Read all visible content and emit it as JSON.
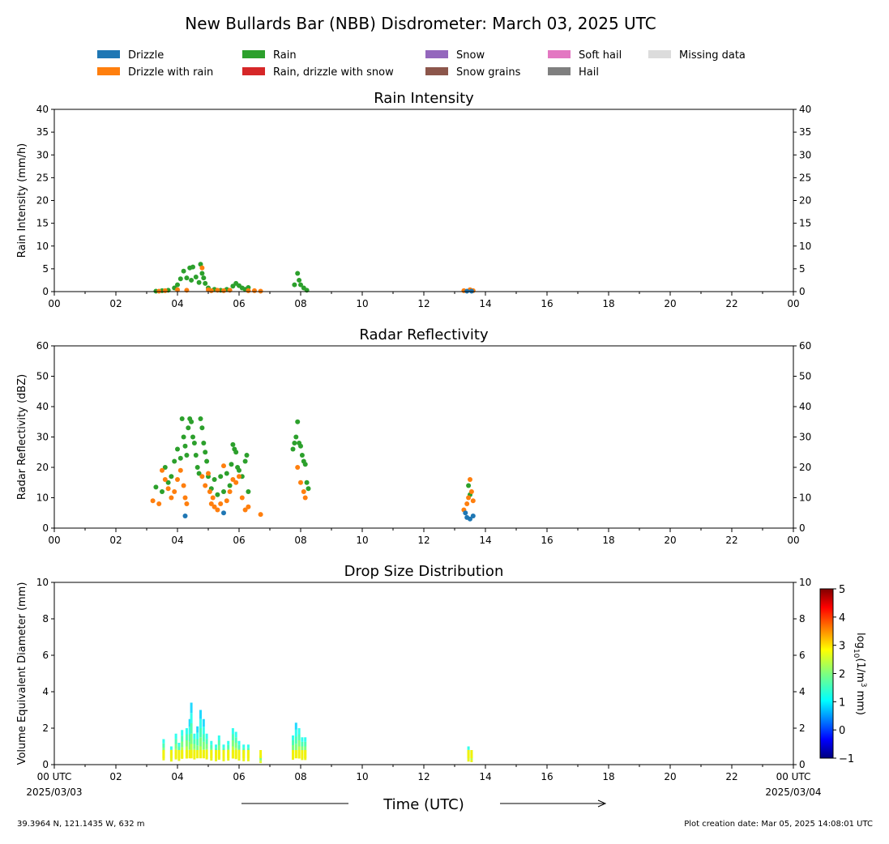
{
  "title": "New Bullards Bar (NBB) Disdrometer: March 03, 2025 UTC",
  "legend": [
    {
      "label": "Drizzle",
      "color": "#1f77b4"
    },
    {
      "label": "Drizzle with rain",
      "color": "#ff7f0e"
    },
    {
      "label": "Rain",
      "color": "#2ca02c"
    },
    {
      "label": "Rain, drizzle with snow",
      "color": "#d62728"
    },
    {
      "label": "Snow",
      "color": "#9467bd"
    },
    {
      "label": "Snow grains",
      "color": "#8c564b"
    },
    {
      "label": "Soft hail",
      "color": "#e377c2"
    },
    {
      "label": "Hail",
      "color": "#7f7f7f"
    },
    {
      "label": "Missing data",
      "color": "#dcdcdc"
    }
  ],
  "x_ticks": [
    "00",
    "02",
    "04",
    "06",
    "08",
    "10",
    "12",
    "14",
    "16",
    "18",
    "20",
    "22",
    "00"
  ],
  "x_first_tick": {
    "line1": "00 UTC",
    "line2": "2025/03/03"
  },
  "x_last_tick": {
    "line1": "00 UTC",
    "line2": "2025/03/04"
  },
  "xlabel": "Time (UTC)",
  "footer_left": "39.3964 N, 121.1435 W, 632 m",
  "footer_right": "Plot creation date: Mar 05, 2025 14:08:01 UTC",
  "chart_data": [
    {
      "type": "scatter",
      "title": "Rain Intensity",
      "ylabel": "Rain Intensity (mm/h)",
      "xlim": [
        0,
        24
      ],
      "ylim": [
        0,
        40
      ],
      "yticks": [
        0,
        5,
        10,
        15,
        20,
        25,
        30,
        35,
        40
      ],
      "series": [
        {
          "name": "Rain",
          "color": "#2ca02c",
          "points": [
            [
              3.3,
              0.1
            ],
            [
              3.5,
              0.2
            ],
            [
              3.7,
              0.3
            ],
            [
              3.9,
              0.8
            ],
            [
              4.0,
              1.5
            ],
            [
              4.1,
              2.8
            ],
            [
              4.2,
              4.5
            ],
            [
              4.3,
              3.0
            ],
            [
              4.4,
              5.2
            ],
            [
              4.45,
              2.5
            ],
            [
              4.5,
              5.4
            ],
            [
              4.6,
              3.2
            ],
            [
              4.7,
              2.0
            ],
            [
              4.75,
              6.0
            ],
            [
              4.8,
              4.0
            ],
            [
              4.85,
              3.0
            ],
            [
              4.9,
              1.8
            ],
            [
              5.0,
              0.8
            ],
            [
              5.2,
              0.5
            ],
            [
              5.4,
              0.3
            ],
            [
              5.6,
              0.5
            ],
            [
              5.8,
              1.2
            ],
            [
              5.9,
              1.8
            ],
            [
              6.0,
              1.3
            ],
            [
              6.1,
              0.8
            ],
            [
              6.2,
              0.5
            ],
            [
              6.3,
              0.9
            ],
            [
              7.8,
              1.5
            ],
            [
              7.9,
              4.0
            ],
            [
              7.95,
              2.5
            ],
            [
              8.0,
              1.5
            ],
            [
              8.1,
              0.8
            ],
            [
              8.2,
              0.3
            ]
          ]
        },
        {
          "name": "Drizzle with rain",
          "color": "#ff7f0e",
          "points": [
            [
              3.4,
              0.1
            ],
            [
              3.6,
              0.2
            ],
            [
              4.0,
              0.4
            ],
            [
              4.3,
              0.3
            ],
            [
              4.8,
              5.2
            ],
            [
              5.0,
              0.4
            ],
            [
              5.1,
              0.2
            ],
            [
              5.3,
              0.3
            ],
            [
              5.5,
              0.2
            ],
            [
              5.7,
              0.3
            ],
            [
              6.3,
              0.2
            ],
            [
              6.5,
              0.2
            ],
            [
              6.7,
              0.1
            ],
            [
              13.3,
              0.2
            ],
            [
              13.5,
              0.4
            ],
            [
              13.6,
              0.2
            ]
          ]
        },
        {
          "name": "Drizzle",
          "color": "#1f77b4",
          "points": [
            [
              13.4,
              0.1
            ],
            [
              13.55,
              0.1
            ]
          ]
        }
      ]
    },
    {
      "type": "scatter",
      "title": "Radar Reflectivity",
      "ylabel": "Radar Reflectivity (dBZ)",
      "xlim": [
        0,
        24
      ],
      "ylim": [
        0,
        60
      ],
      "yticks": [
        0,
        10,
        20,
        30,
        40,
        50,
        60
      ],
      "series": [
        {
          "name": "Rain",
          "color": "#2ca02c",
          "points": [
            [
              3.3,
              13.5
            ],
            [
              3.5,
              12
            ],
            [
              3.6,
              20
            ],
            [
              3.7,
              15
            ],
            [
              3.8,
              17
            ],
            [
              3.9,
              22
            ],
            [
              4.0,
              26
            ],
            [
              4.1,
              23
            ],
            [
              4.15,
              36
            ],
            [
              4.2,
              30
            ],
            [
              4.25,
              27
            ],
            [
              4.3,
              24
            ],
            [
              4.35,
              33
            ],
            [
              4.4,
              36
            ],
            [
              4.45,
              35
            ],
            [
              4.5,
              30
            ],
            [
              4.55,
              28
            ],
            [
              4.6,
              24
            ],
            [
              4.65,
              20
            ],
            [
              4.7,
              18
            ],
            [
              4.75,
              36
            ],
            [
              4.8,
              33
            ],
            [
              4.85,
              28
            ],
            [
              4.9,
              25
            ],
            [
              4.95,
              22
            ],
            [
              5.0,
              17
            ],
            [
              5.1,
              13
            ],
            [
              5.2,
              16
            ],
            [
              5.3,
              11
            ],
            [
              5.4,
              17
            ],
            [
              5.5,
              12
            ],
            [
              5.6,
              18
            ],
            [
              5.7,
              14
            ],
            [
              5.75,
              21
            ],
            [
              5.8,
              27.5
            ],
            [
              5.85,
              26
            ],
            [
              5.9,
              25
            ],
            [
              5.95,
              20
            ],
            [
              6.0,
              19
            ],
            [
              6.1,
              17
            ],
            [
              6.2,
              22
            ],
            [
              6.25,
              24
            ],
            [
              6.3,
              12
            ],
            [
              7.75,
              26
            ],
            [
              7.8,
              28
            ],
            [
              7.85,
              30
            ],
            [
              7.9,
              35
            ],
            [
              7.95,
              28
            ],
            [
              8.0,
              27
            ],
            [
              8.05,
              24
            ],
            [
              8.1,
              22
            ],
            [
              8.15,
              21
            ],
            [
              8.2,
              15
            ],
            [
              8.25,
              13
            ],
            [
              13.45,
              14
            ],
            [
              13.5,
              11
            ]
          ]
        },
        {
          "name": "Drizzle with rain",
          "color": "#ff7f0e",
          "points": [
            [
              3.2,
              9
            ],
            [
              3.4,
              8
            ],
            [
              3.5,
              19
            ],
            [
              3.6,
              16
            ],
            [
              3.7,
              13
            ],
            [
              3.8,
              10
            ],
            [
              3.9,
              12
            ],
            [
              4.0,
              16
            ],
            [
              4.1,
              19
            ],
            [
              4.2,
              14
            ],
            [
              4.25,
              10
            ],
            [
              4.3,
              8
            ],
            [
              4.8,
              17
            ],
            [
              4.9,
              14
            ],
            [
              5.0,
              18
            ],
            [
              5.05,
              12
            ],
            [
              5.1,
              8
            ],
            [
              5.15,
              10
            ],
            [
              5.2,
              7
            ],
            [
              5.3,
              6
            ],
            [
              5.4,
              8
            ],
            [
              5.5,
              20.5
            ],
            [
              5.6,
              9
            ],
            [
              5.7,
              12
            ],
            [
              5.8,
              16
            ],
            [
              5.9,
              15
            ],
            [
              6.0,
              17
            ],
            [
              6.1,
              10
            ],
            [
              6.2,
              6
            ],
            [
              6.3,
              7
            ],
            [
              6.7,
              4.5
            ],
            [
              7.9,
              20
            ],
            [
              8.0,
              15
            ],
            [
              8.1,
              12
            ],
            [
              8.15,
              10
            ],
            [
              13.3,
              6
            ],
            [
              13.4,
              8
            ],
            [
              13.45,
              10
            ],
            [
              13.5,
              16
            ],
            [
              13.55,
              12
            ],
            [
              13.6,
              9
            ]
          ]
        },
        {
          "name": "Drizzle",
          "color": "#1f77b4",
          "points": [
            [
              4.25,
              4
            ],
            [
              5.5,
              5
            ],
            [
              13.35,
              5
            ],
            [
              13.4,
              3.5
            ],
            [
              13.5,
              3
            ],
            [
              13.6,
              4
            ]
          ]
        }
      ]
    },
    {
      "type": "heatmap",
      "title": "Drop Size Distribution",
      "ylabel": "Volume Equivalent Diameter (mm)",
      "xlim": [
        0,
        24
      ],
      "ylim": [
        0,
        10
      ],
      "yticks": [
        0,
        2,
        4,
        6,
        8,
        10
      ],
      "colorbar": {
        "label": "log10(1/m3 mm)",
        "min": -1,
        "max": 5,
        "ticks": [
          -1,
          0,
          1,
          2,
          3,
          4,
          5
        ]
      },
      "columns": [
        {
          "x": 3.55,
          "max_d": 1.4
        },
        {
          "x": 3.8,
          "max_d": 1.0
        },
        {
          "x": 3.95,
          "max_d": 1.7
        },
        {
          "x": 4.05,
          "max_d": 1.2
        },
        {
          "x": 4.15,
          "max_d": 1.9
        },
        {
          "x": 4.3,
          "max_d": 2.0
        },
        {
          "x": 4.4,
          "max_d": 2.5
        },
        {
          "x": 4.45,
          "max_d": 3.4
        },
        {
          "x": 4.55,
          "max_d": 1.7
        },
        {
          "x": 4.65,
          "max_d": 2.1
        },
        {
          "x": 4.75,
          "max_d": 3.0
        },
        {
          "x": 4.85,
          "max_d": 2.5
        },
        {
          "x": 4.95,
          "max_d": 1.7
        },
        {
          "x": 5.1,
          "max_d": 1.3
        },
        {
          "x": 5.25,
          "max_d": 1.1
        },
        {
          "x": 5.35,
          "max_d": 1.6
        },
        {
          "x": 5.5,
          "max_d": 1.1
        },
        {
          "x": 5.65,
          "max_d": 1.3
        },
        {
          "x": 5.8,
          "max_d": 2.0
        },
        {
          "x": 5.9,
          "max_d": 1.8
        },
        {
          "x": 6.0,
          "max_d": 1.3
        },
        {
          "x": 6.15,
          "max_d": 1.1
        },
        {
          "x": 6.3,
          "max_d": 1.1
        },
        {
          "x": 6.7,
          "max_d": 0.5
        },
        {
          "x": 7.75,
          "max_d": 1.6
        },
        {
          "x": 7.85,
          "max_d": 2.3
        },
        {
          "x": 7.95,
          "max_d": 2.0
        },
        {
          "x": 8.05,
          "max_d": 1.5
        },
        {
          "x": 8.15,
          "max_d": 1.5
        },
        {
          "x": 13.45,
          "max_d": 1.0
        },
        {
          "x": 13.55,
          "max_d": 0.8
        }
      ]
    }
  ]
}
